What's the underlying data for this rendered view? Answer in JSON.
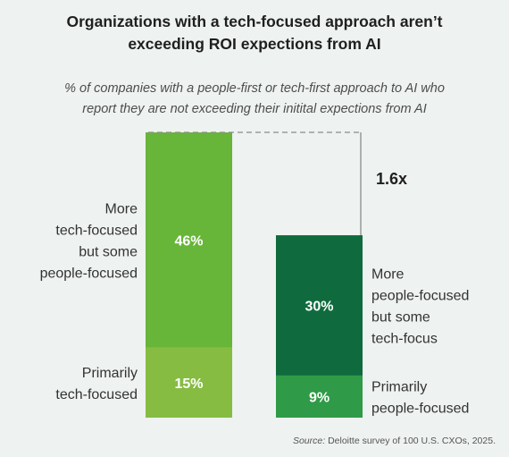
{
  "chart_data": {
    "type": "bar",
    "stacked": true,
    "title": [
      "Organizations with a tech-focused approach aren’t",
      "exceeding ROI expections from AI"
    ],
    "subtitle": [
      "% of companies with a people-first or tech-first approach to AI who",
      "report they are not exceeding their initital expections from AI"
    ],
    "unit": "%",
    "bars": [
      {
        "segments": [
          {
            "value": 15,
            "label": "15%",
            "color": "#86bc42",
            "category": [
              "Primarily",
              "tech-focused"
            ]
          },
          {
            "value": 46,
            "label": "46%",
            "color": "#67b539",
            "category": [
              "More",
              "tech-focused",
              "but some",
              "people-focused"
            ]
          }
        ]
      },
      {
        "segments": [
          {
            "value": 9,
            "label": "9%",
            "color": "#2f9a47",
            "category": [
              "Primarily",
              "people-focused"
            ]
          },
          {
            "value": 30,
            "label": "30%",
            "color": "#0f6b3d",
            "category": [
              "More",
              "people-focused",
              "but some",
              "tech-focus"
            ]
          }
        ]
      }
    ],
    "comparison": {
      "label": "1.6x",
      "line_color": "#8c8c8c"
    },
    "source_label": "Source:",
    "source_text": " Deloitte survey of 100 U.S. CXOs, 2025."
  }
}
